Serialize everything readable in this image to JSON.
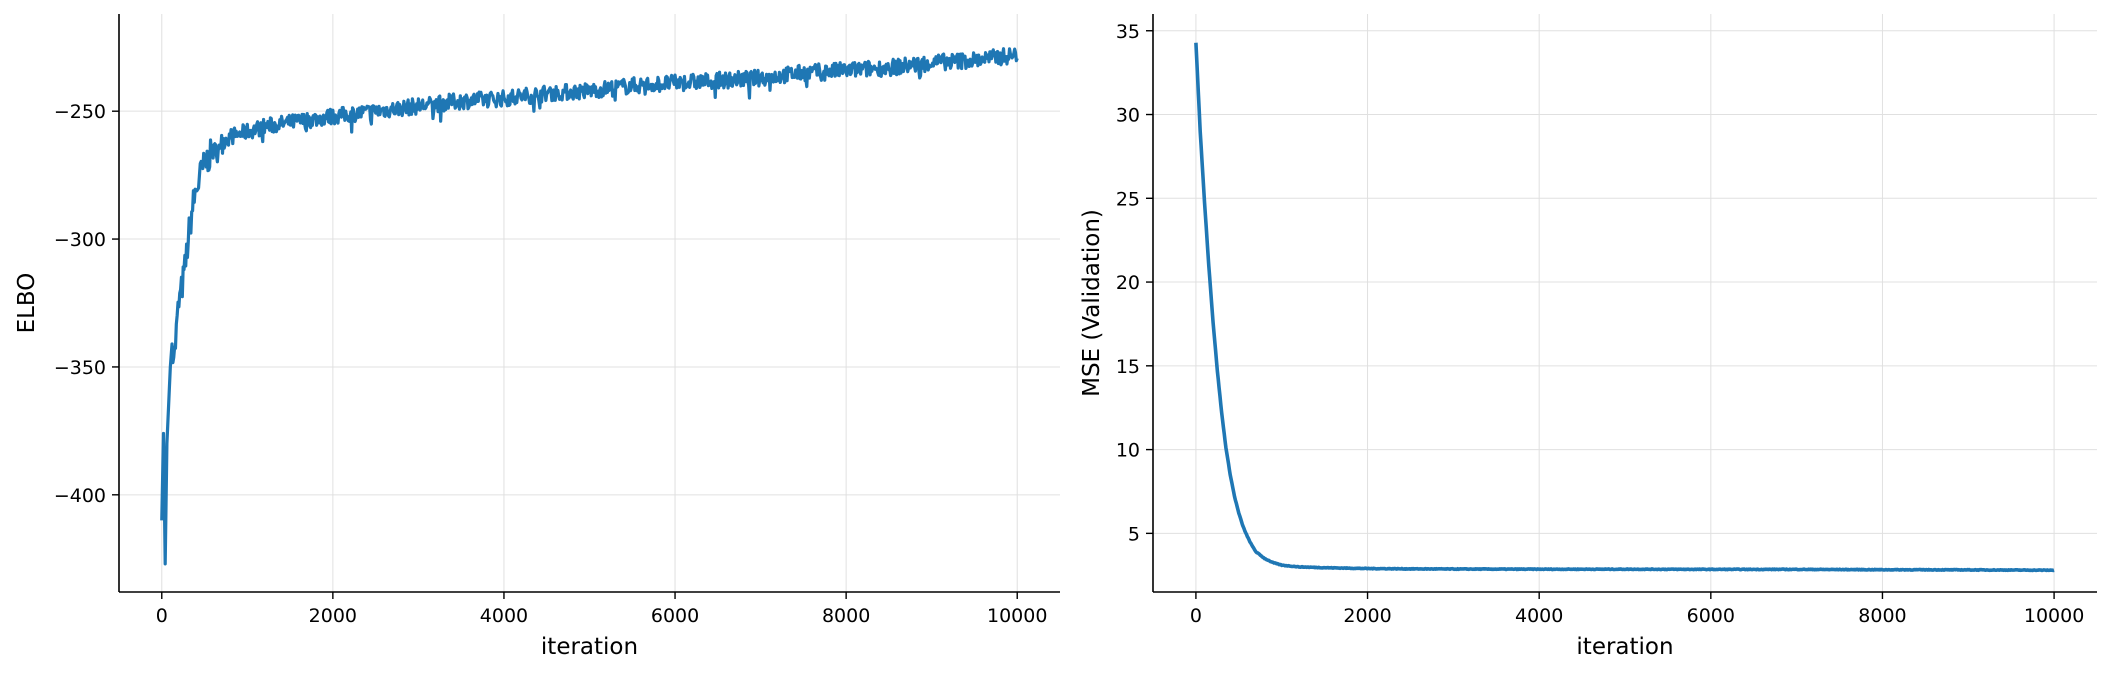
{
  "chart_data": [
    {
      "type": "line",
      "xlabel": "iteration",
      "ylabel": "ELBO",
      "xlim": [
        -500,
        10500
      ],
      "ylim": [
        -438,
        -212
      ],
      "xticks": [
        0,
        2000,
        4000,
        6000,
        8000,
        10000
      ],
      "yticks": [
        -400,
        -350,
        -300,
        -250
      ],
      "xtick_labels": [
        "0",
        "2000",
        "4000",
        "6000",
        "8000",
        "10000"
      ],
      "ytick_labels": [
        "−400",
        "−350",
        "−300",
        "−250"
      ],
      "grid": true,
      "color": "#1f77b4",
      "noisy": true,
      "x": [
        0,
        20,
        40,
        60,
        80,
        100,
        120,
        150,
        180,
        200,
        220,
        250,
        280,
        300,
        320,
        350,
        380,
        400,
        430,
        460,
        500,
        550,
        600,
        650,
        700,
        800,
        900,
        1000,
        1200,
        1400,
        1600,
        1800,
        2000,
        2500,
        3000,
        3500,
        4000,
        4500,
        5000,
        5500,
        6000,
        6500,
        7000,
        7500,
        8000,
        8500,
        9000,
        9500,
        10000
      ],
      "y": [
        -410,
        -376,
        -427,
        -380,
        -365,
        -350,
        -341,
        -345,
        -332,
        -325,
        -322,
        -316,
        -309,
        -303,
        -297,
        -290,
        -284,
        -281,
        -278,
        -274,
        -271,
        -268,
        -266,
        -264,
        -262,
        -260,
        -259,
        -258,
        -256,
        -255,
        -254,
        -253,
        -252,
        -250,
        -248,
        -246,
        -245,
        -243,
        -242,
        -240,
        -239,
        -238,
        -237,
        -235,
        -234,
        -233,
        -231,
        -230,
        -228
      ]
    },
    {
      "type": "line",
      "xlabel": "iteration",
      "ylabel": "MSE (Validation)",
      "xlim": [
        -500,
        10500
      ],
      "ylim": [
        1.5,
        36
      ],
      "xticks": [
        0,
        2000,
        4000,
        6000,
        8000,
        10000
      ],
      "yticks": [
        5,
        10,
        15,
        20,
        25,
        30,
        35
      ],
      "xtick_labels": [
        "0",
        "2000",
        "4000",
        "6000",
        "8000",
        "10000"
      ],
      "ytick_labels": [
        "5",
        "10",
        "15",
        "20",
        "25",
        "30",
        "35"
      ],
      "grid": true,
      "color": "#1f77b4",
      "noisy": false,
      "x": [
        0,
        50,
        100,
        150,
        200,
        250,
        300,
        350,
        400,
        450,
        500,
        550,
        600,
        650,
        700,
        750,
        800,
        900,
        1000,
        1200,
        1500,
        2000,
        2500,
        3000,
        4000,
        5000,
        6000,
        7000,
        8000,
        9000,
        10000
      ],
      "y": [
        34.3,
        29.0,
        24.8,
        21.0,
        17.6,
        14.7,
        12.2,
        10.1,
        8.5,
        7.2,
        6.2,
        5.4,
        4.8,
        4.3,
        3.9,
        3.7,
        3.5,
        3.25,
        3.1,
        3.0,
        2.95,
        2.9,
        2.88,
        2.87,
        2.86,
        2.86,
        2.85,
        2.85,
        2.83,
        2.82,
        2.8
      ]
    }
  ]
}
